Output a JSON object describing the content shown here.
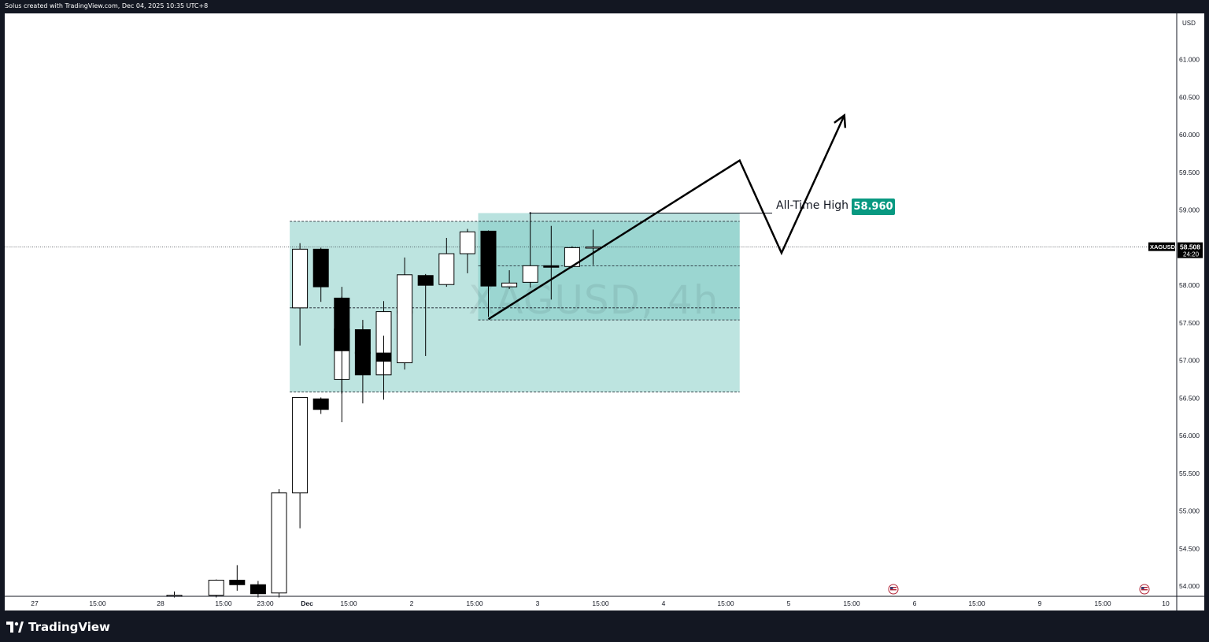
{
  "header": {
    "text": "Solus created with TradingView.com, Dec 04, 2025 10:35 UTC+8"
  },
  "footer": {
    "brand": "TradingView"
  },
  "colors": {
    "bull_fill": "#ffffff",
    "bear_fill": "#000000",
    "zone_fill": "#b2dfdb",
    "zone_dark_fill": "#80cbc4",
    "ath_badge": "#089981",
    "price_tag": "#000000"
  },
  "watermark": "XAGUSD, 4h",
  "annotation": {
    "label": "All-Time High",
    "value": "58.960",
    "level": 58.96
  },
  "price_axis": {
    "currency": "USD",
    "symbol": "XAGUSD",
    "last_price": "58.508",
    "countdown": "24:20",
    "last_value": 58.508
  },
  "chart_data": {
    "type": "candlestick",
    "symbol": "XAGUSD",
    "interval": "4h",
    "ylim": [
      53.85,
      61.6
    ],
    "y_ticks": [
      "61.000",
      "60.500",
      "60.000",
      "59.500",
      "59.000",
      "58.500",
      "58.000",
      "57.500",
      "57.000",
      "56.500",
      "56.000",
      "55.500",
      "55.000",
      "54.500",
      "54.000"
    ],
    "x_ticks": [
      "27",
      "15:00",
      "28",
      "15:00",
      "23:00",
      "Dec",
      "15:00",
      "2",
      "15:00",
      "3",
      "15:00",
      "4",
      "15:00",
      "5",
      "15:00",
      "6",
      "15:00",
      "9",
      "15:00",
      "10"
    ],
    "candles": [
      {
        "t": "Nov 28 03:00",
        "o": 53.88,
        "h": 53.93,
        "l": 53.85,
        "c": 53.88
      },
      {
        "t": "Nov 28 11:00",
        "o": 53.88,
        "h": 54.09,
        "l": 53.85,
        "c": 54.08
      },
      {
        "t": "Nov 28 15:00",
        "o": 54.08,
        "h": 54.28,
        "l": 53.94,
        "c": 54.02
      },
      {
        "t": "Nov 28 19:00",
        "o": 54.02,
        "h": 54.07,
        "l": 53.85,
        "c": 53.9
      },
      {
        "t": "Nov 28 23:00",
        "o": 53.91,
        "h": 55.29,
        "l": 53.85,
        "c": 55.24
      },
      {
        "t": "Dec 01 03:00",
        "o": 55.24,
        "h": 56.51,
        "l": 54.77,
        "c": 56.51
      },
      {
        "t": "Dec 01 07:00",
        "o": 56.49,
        "h": 56.51,
        "l": 56.29,
        "c": 56.35
      },
      {
        "t": "Dec 01 11:00",
        "o": 56.75,
        "h": 57.85,
        "l": 56.18,
        "c": 57.42
      },
      {
        "t": "Dec 01 15:00",
        "o": 57.41,
        "h": 57.46,
        "l": 56.43,
        "c": 56.81
      },
      {
        "t": "Dec 01 19:00",
        "o": 56.81,
        "h": 57.79,
        "l": 56.48,
        "c": 57.65
      },
      {
        "t": "Dec 01 23:00",
        "o": 57.63,
        "h": 57.69,
        "l": 56.88,
        "c": 57.66
      },
      {
        "t": "Dec 02 03:00",
        "o": 57.7,
        "h": 58.56,
        "l": 57.2,
        "c": 58.48
      },
      {
        "t": "Dec 02 07:00",
        "o": 58.48,
        "h": 58.5,
        "l": 57.78,
        "c": 57.98
      },
      {
        "t": "Dec 02 11:00",
        "o": 57.83,
        "h": 57.98,
        "l": 56.56,
        "c": 57.13
      },
      {
        "t": "Dec 02 15:00",
        "o": 57.11,
        "h": 57.54,
        "l": 56.81,
        "c": 57.1
      },
      {
        "t": "Dec 02 19:00",
        "o": 57.1,
        "h": 57.33,
        "l": 56.68,
        "c": 56.99
      },
      {
        "t": "Dec 02 23:00",
        "o": 56.97,
        "h": 58.37,
        "l": 56.94,
        "c": 58.14
      },
      {
        "t": "Dec 03 03:00",
        "o": 58.13,
        "h": 58.15,
        "l": 57.06,
        "c": 58.0
      },
      {
        "t": "Dec 03 07:00",
        "o": 58.01,
        "h": 58.63,
        "l": 57.98,
        "c": 58.42
      },
      {
        "t": "Dec 03 11:00",
        "o": 58.42,
        "h": 58.75,
        "l": 58.16,
        "c": 58.71
      },
      {
        "t": "Dec 03 15:00",
        "o": 58.72,
        "h": 58.73,
        "l": 57.58,
        "c": 57.99
      },
      {
        "t": "Dec 03 19:00",
        "o": 57.98,
        "h": 58.2,
        "l": 57.95,
        "c": 58.03
      },
      {
        "t": "Dec 03 23:00",
        "o": 58.04,
        "h": 58.96,
        "l": 57.97,
        "c": 58.26
      },
      {
        "t": "Dec 04 03:00",
        "o": 58.26,
        "h": 58.79,
        "l": 57.81,
        "c": 58.24
      },
      {
        "t": "Dec 04 07:00",
        "o": 58.25,
        "h": 58.52,
        "l": 58.23,
        "c": 58.5
      },
      {
        "t": "Dec 04 11:00",
        "o": 58.51,
        "h": 58.74,
        "l": 58.27,
        "c": 58.51
      }
    ],
    "zones": [
      {
        "name": "range-box",
        "top": 58.85,
        "bottom": 56.58,
        "start": "Dec 02 03:00",
        "end": "Dec 05 15:00"
      },
      {
        "name": "upper-box",
        "top": 58.96,
        "bottom": 57.54,
        "start": "Dec 03 15:00",
        "end": "Dec 05 15:00"
      }
    ],
    "levels": [
      {
        "name": "zone-top",
        "value": 58.85,
        "start": "Dec 02 03:00",
        "end": "Dec 05 15:00"
      },
      {
        "name": "zone-upper",
        "value": 58.26,
        "start": "Dec 03 15:00",
        "end": "Dec 05 15:00"
      },
      {
        "name": "zone-mid",
        "value": 57.7,
        "start": "Dec 02 03:00",
        "end": "Dec 05 15:00"
      },
      {
        "name": "zone-lower",
        "value": 57.54,
        "start": "Dec 03 15:00",
        "end": "Dec 05 15:00"
      },
      {
        "name": "zone-bottom",
        "value": 56.58,
        "start": "Dec 02 03:00",
        "end": "Dec 05 15:00"
      }
    ],
    "projection": [
      {
        "t": "Dec 03 15:00",
        "v": 57.55
      },
      {
        "t": "Dec 05 15:00",
        "v": 59.66
      },
      {
        "t": "Dec 05 23:00",
        "v": 58.43
      },
      {
        "t": "Dec 06 11:00",
        "v": 60.26
      }
    ]
  }
}
